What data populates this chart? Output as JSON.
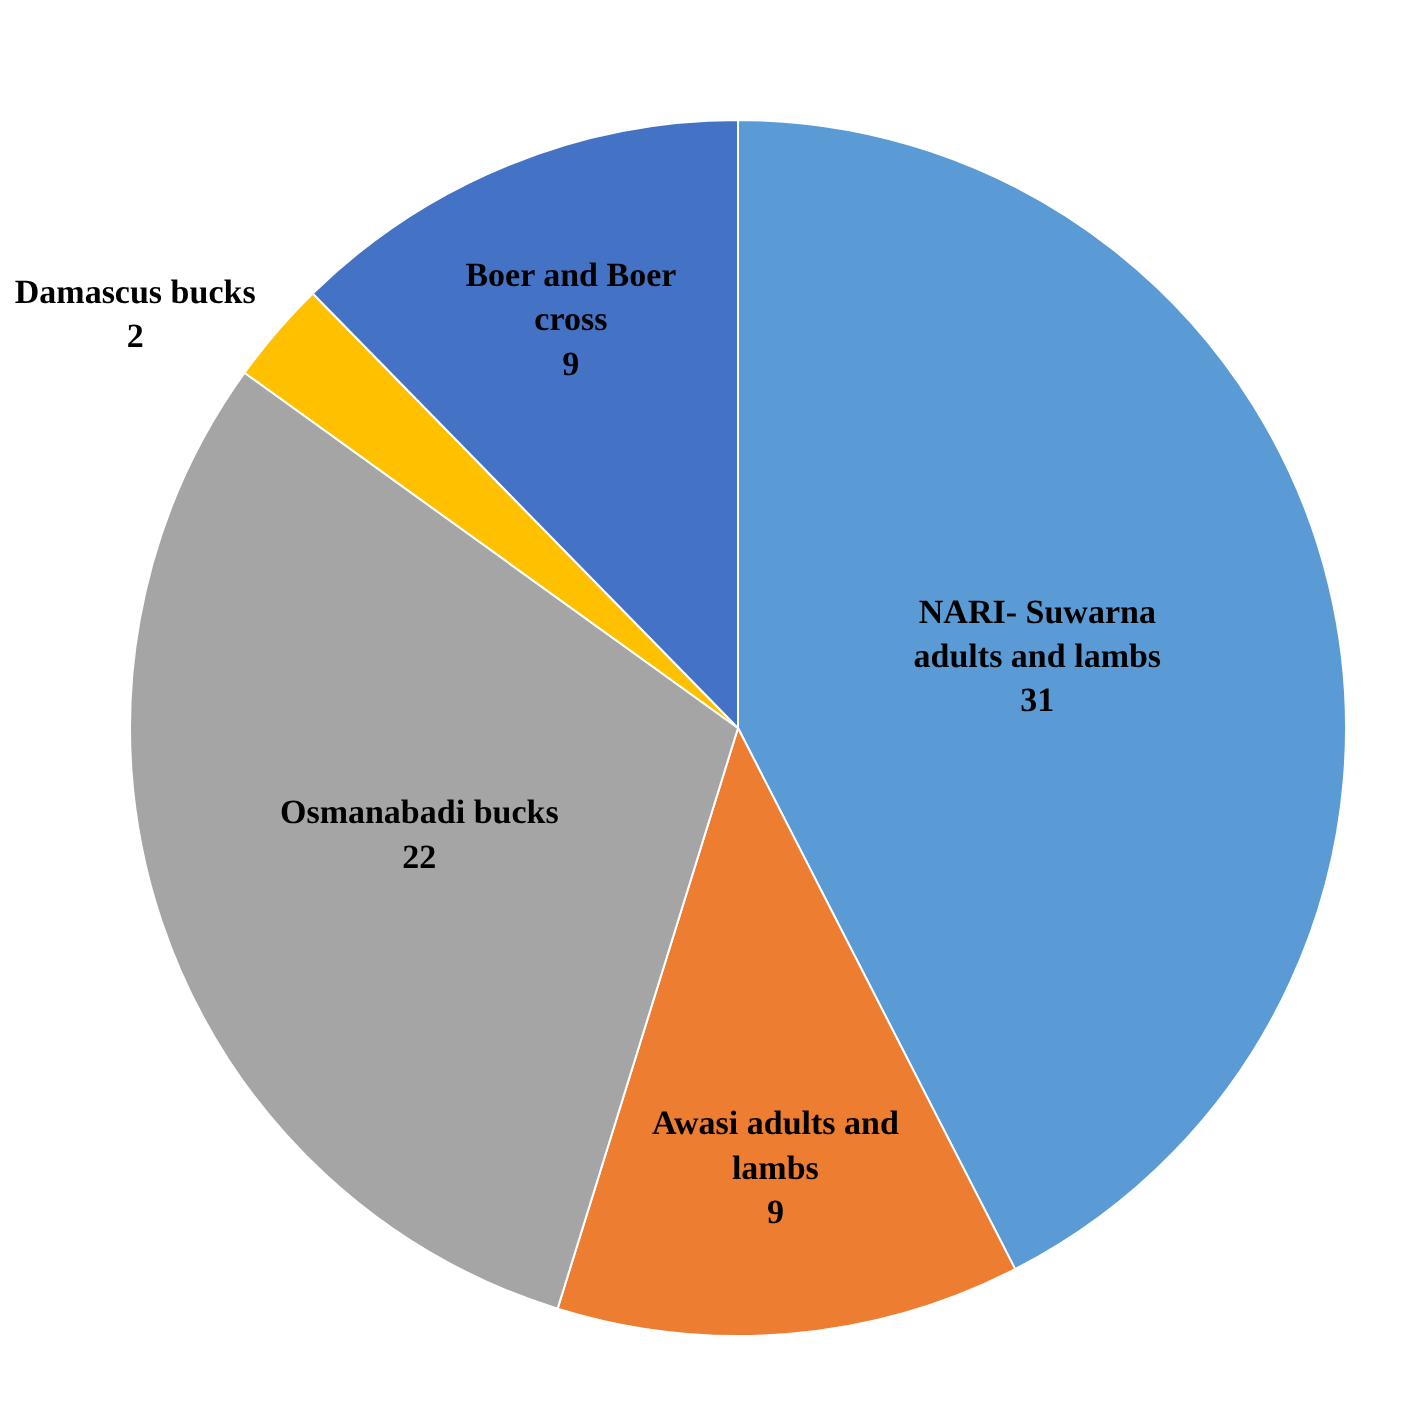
{
  "chart_data": {
    "type": "pie",
    "categories": [
      "NARI- Suwarna adults and lambs",
      "Awasi adults and lambs",
      "Osmanabadi bucks",
      "Damascus bucks",
      "Boer and Boer cross"
    ],
    "values": [
      31,
      9,
      22,
      2,
      9
    ],
    "colors": [
      "#5b9bd5",
      "#ed7d31",
      "#a5a5a5",
      "#ffc000",
      "#4472c4"
    ],
    "data_labels": true,
    "legend": false
  }
}
